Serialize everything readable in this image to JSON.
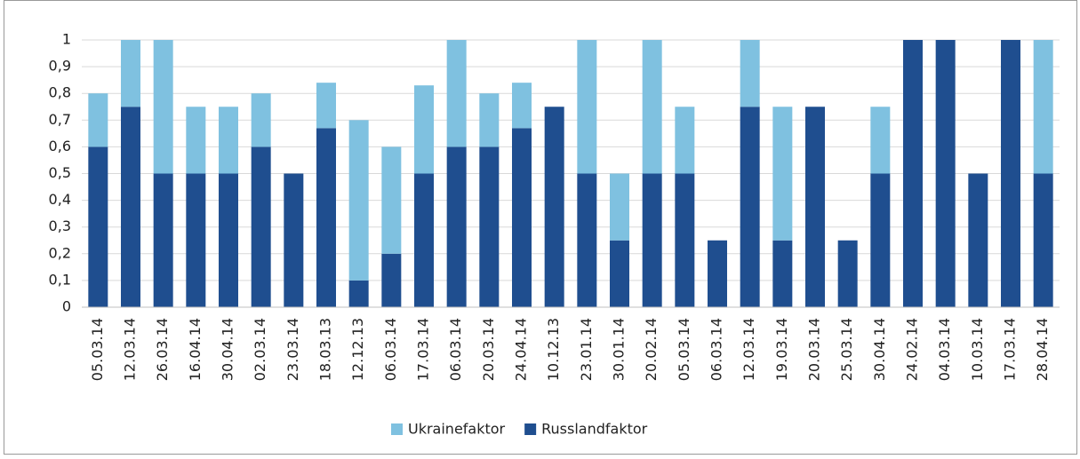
{
  "chart_data": {
    "type": "stacked_bar",
    "categories": [
      "05.03.14",
      "12.03.14",
      "26.03.14",
      "16.04.14",
      "30.04.14",
      "02.03.14",
      "23.03.14",
      "18.03.13",
      "12.12.13",
      "06.03.14",
      "17.03.14",
      "06.03.14",
      "20.03.14",
      "24.04.14",
      "10.12.13",
      "23.01.14",
      "30.01.14",
      "20.02.14",
      "05.03.14",
      "06.03.14",
      "12.03.14",
      "19.03.14",
      "20.03.14",
      "25.03.14",
      "30.04.14",
      "24.02.14",
      "04.03.14",
      "10.03.14",
      "17.03.14",
      "28.04.14"
    ],
    "series": [
      {
        "name": "Ukrainefaktor",
        "color": "#7fc1e0",
        "values": [
          0.2,
          0.25,
          0.5,
          0.25,
          0.25,
          0.2,
          0,
          0.17,
          0.6,
          0.4,
          0.33,
          0.4,
          0.2,
          0.17,
          0,
          0.5,
          0.25,
          0.5,
          0.25,
          0,
          0.25,
          0.5,
          0,
          0,
          0.25,
          0,
          0,
          0,
          0,
          0.5
        ]
      },
      {
        "name": "Russlandfaktor",
        "color": "#1f4e8f",
        "values": [
          0.6,
          0.75,
          0.5,
          0.5,
          0.5,
          0.6,
          0.5,
          0.67,
          0.1,
          0.2,
          0.5,
          0.6,
          0.6,
          0.67,
          0.75,
          0.5,
          0.25,
          0.5,
          0.5,
          0.25,
          0.75,
          0.25,
          0.75,
          0.25,
          0.5,
          1,
          1,
          0.5,
          1,
          0.5
        ]
      }
    ],
    "ylim": [
      0,
      1
    ],
    "yticks": [
      0,
      {
        "value": 0.1,
        "label": "0,1"
      },
      {
        "value": 0.2,
        "label": "0,2"
      },
      {
        "value": 0.3,
        "label": "0,3"
      },
      {
        "value": 0.4,
        "label": "0,4"
      },
      {
        "value": 0.5,
        "label": "0,5"
      },
      {
        "value": 0.6,
        "label": "0,6"
      },
      {
        "value": 0.7,
        "label": "0,7"
      },
      {
        "value": 0.8,
        "label": "0,8"
      },
      {
        "value": 0.9,
        "label": "0,9"
      },
      1
    ],
    "grid": true,
    "legend": "bottom"
  }
}
